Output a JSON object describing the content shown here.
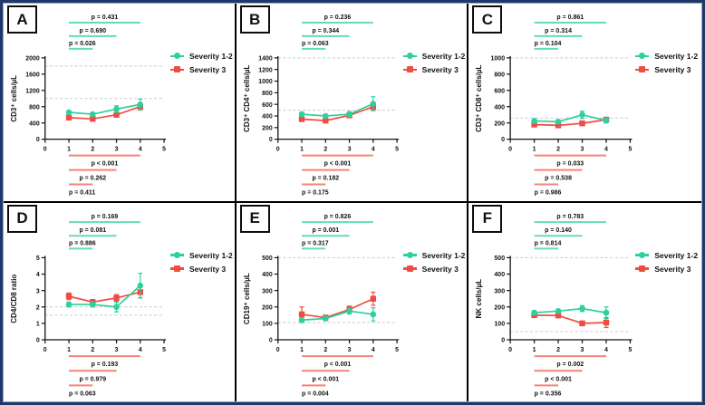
{
  "figure": {
    "outer_border_color": "#1f3864",
    "inner_border_color": "#8faadc",
    "divider_color": "#000000",
    "dashed_line_color": "#c9c9c9"
  },
  "legend": {
    "series1": "Severity 1-2",
    "series2": "Severity 3",
    "series1_color": "#2fcf9f",
    "series2_color": "#f04c41",
    "bracket_teal": "#63dcba",
    "bracket_red": "#f5837b"
  },
  "chart_data": [
    {
      "type": "line",
      "panel": "A",
      "ylabel": "CD3⁺ cells/µL",
      "xlabel": "",
      "ylim": [
        0,
        2000
      ],
      "yticks": [
        0,
        400,
        800,
        1200,
        1600,
        2000
      ],
      "xlim": [
        0,
        5
      ],
      "xticks": [
        0,
        1,
        2,
        3,
        4,
        5
      ],
      "dashed_lines": [
        1800,
        1000
      ],
      "x": [
        1,
        2,
        3,
        4
      ],
      "series": [
        {
          "name": "Severity 1-2",
          "marker": "circle",
          "values": [
            660,
            615,
            740,
            855
          ],
          "errors": [
            45,
            35,
            80,
            130
          ]
        },
        {
          "name": "Severity 3",
          "marker": "square",
          "values": [
            530,
            500,
            600,
            800
          ],
          "errors": [
            40,
            35,
            50,
            80
          ]
        }
      ],
      "top_brackets": [
        {
          "label": "p = 0.431",
          "x1": 1,
          "x2": 4
        },
        {
          "label": "p = 0.690",
          "x1": 1,
          "x2": 3
        },
        {
          "label": "p = 0.026",
          "x1": 1,
          "x2": 2
        }
      ],
      "bottom_brackets": [
        {
          "label": "p < 0.001",
          "x1": 1,
          "x2": 4
        },
        {
          "label": "p = 0.262",
          "x1": 1,
          "x2": 3
        },
        {
          "label": "p = 0.411",
          "x1": 1,
          "x2": 2
        }
      ]
    },
    {
      "type": "line",
      "panel": "B",
      "ylabel": "CD3⁺ CD4⁺ cells/µL",
      "xlabel": "",
      "ylim": [
        0,
        1400
      ],
      "yticks": [
        0,
        200,
        400,
        600,
        800,
        1000,
        1200,
        1400
      ],
      "xlim": [
        0,
        5
      ],
      "xticks": [
        0,
        1,
        2,
        3,
        4,
        5
      ],
      "dashed_lines": [
        1400,
        500
      ],
      "x": [
        1,
        2,
        3,
        4
      ],
      "series": [
        {
          "name": "Severity 1-2",
          "marker": "circle",
          "values": [
            430,
            400,
            430,
            610
          ],
          "errors": [
            35,
            30,
            45,
            120
          ]
        },
        {
          "name": "Severity 3",
          "marker": "square",
          "values": [
            345,
            320,
            410,
            560
          ],
          "errors": [
            30,
            30,
            30,
            60
          ]
        }
      ],
      "top_brackets": [
        {
          "label": "p = 0.236",
          "x1": 1,
          "x2": 4
        },
        {
          "label": "p = 0.344",
          "x1": 1,
          "x2": 3
        },
        {
          "label": "p = 0.063",
          "x1": 1,
          "x2": 2
        }
      ],
      "bottom_brackets": [
        {
          "label": "p < 0.001",
          "x1": 1,
          "x2": 4
        },
        {
          "label": "p = 0.182",
          "x1": 1,
          "x2": 3
        },
        {
          "label": "p = 0.175",
          "x1": 1,
          "x2": 2
        }
      ]
    },
    {
      "type": "line",
      "panel": "C",
      "ylabel": "CD3⁺ CD8⁺ cells/µL",
      "xlabel": "",
      "ylim": [
        0,
        1000
      ],
      "yticks": [
        0,
        200,
        400,
        600,
        800,
        1000
      ],
      "xlim": [
        0,
        5
      ],
      "xticks": [
        0,
        1,
        2,
        3,
        4,
        5
      ],
      "dashed_lines": [
        1000,
        260
      ],
      "x": [
        1,
        2,
        3,
        4
      ],
      "series": [
        {
          "name": "Severity 1-2",
          "marker": "circle",
          "values": [
            225,
            215,
            300,
            230
          ],
          "errors": [
            25,
            20,
            45,
            30
          ]
        },
        {
          "name": "Severity 3",
          "marker": "square",
          "values": [
            180,
            170,
            195,
            240
          ],
          "errors": [
            20,
            18,
            20,
            30
          ]
        }
      ],
      "top_brackets": [
        {
          "label": "p = 0.861",
          "x1": 1,
          "x2": 4
        },
        {
          "label": "p = 0.314",
          "x1": 1,
          "x2": 3
        },
        {
          "label": "p = 0.104",
          "x1": 1,
          "x2": 2
        }
      ],
      "bottom_brackets": [
        {
          "label": "p = 0.033",
          "x1": 1,
          "x2": 4
        },
        {
          "label": "p = 0.538",
          "x1": 1,
          "x2": 3
        },
        {
          "label": "p = 0.986",
          "x1": 1,
          "x2": 2
        }
      ]
    },
    {
      "type": "line",
      "panel": "D",
      "ylabel": "CD4/CD8 ratio",
      "xlabel": "",
      "ylim": [
        0,
        5
      ],
      "yticks": [
        0,
        1,
        2,
        3,
        4,
        5
      ],
      "xlim": [
        0,
        5
      ],
      "xticks": [
        0,
        1,
        2,
        3,
        4,
        5
      ],
      "dashed_lines": [
        2.0,
        1.5
      ],
      "x": [
        1,
        2,
        3,
        4
      ],
      "series": [
        {
          "name": "Severity 1-2",
          "marker": "circle",
          "values": [
            2.15,
            2.15,
            2.0,
            3.3
          ],
          "errors": [
            0.15,
            0.15,
            0.3,
            0.75
          ]
        },
        {
          "name": "Severity 3",
          "marker": "square",
          "values": [
            2.65,
            2.3,
            2.55,
            2.9
          ],
          "errors": [
            0.2,
            0.15,
            0.2,
            0.35
          ]
        }
      ],
      "top_brackets": [
        {
          "label": "p = 0.169",
          "x1": 1,
          "x2": 4
        },
        {
          "label": "p = 0.081",
          "x1": 1,
          "x2": 3
        },
        {
          "label": "p = 0.886",
          "x1": 1,
          "x2": 2
        }
      ],
      "bottom_brackets": [
        {
          "label": "p = 0.193",
          "x1": 1,
          "x2": 4
        },
        {
          "label": "p = 0.979",
          "x1": 1,
          "x2": 3
        },
        {
          "label": "p = 0.063",
          "x1": 1,
          "x2": 2
        }
      ]
    },
    {
      "type": "line",
      "panel": "E",
      "ylabel": "CD19⁺ cells/µL",
      "xlabel": "",
      "ylim": [
        0,
        500
      ],
      "yticks": [
        0,
        100,
        200,
        300,
        400,
        500
      ],
      "xlim": [
        0,
        5
      ],
      "xticks": [
        0,
        1,
        2,
        3,
        4,
        5
      ],
      "dashed_lines": [
        500,
        105
      ],
      "x": [
        1,
        2,
        3,
        4
      ],
      "series": [
        {
          "name": "Severity 1-2",
          "marker": "circle",
          "values": [
            120,
            130,
            175,
            155
          ],
          "errors": [
            15,
            12,
            18,
            40
          ]
        },
        {
          "name": "Severity 3",
          "marker": "square",
          "values": [
            155,
            135,
            185,
            250
          ],
          "errors": [
            45,
            15,
            20,
            40
          ]
        }
      ],
      "top_brackets": [
        {
          "label": "p = 0.826",
          "x1": 1,
          "x2": 4
        },
        {
          "label": "p = 0.001",
          "x1": 1,
          "x2": 3
        },
        {
          "label": "p = 0.317",
          "x1": 1,
          "x2": 2
        }
      ],
      "bottom_brackets": [
        {
          "label": "p < 0.001",
          "x1": 1,
          "x2": 4
        },
        {
          "label": "p < 0.001",
          "x1": 1,
          "x2": 3
        },
        {
          "label": "p = 0.004",
          "x1": 1,
          "x2": 2
        }
      ]
    },
    {
      "type": "line",
      "panel": "F",
      "ylabel": "NK cells/µL",
      "xlabel": "",
      "ylim": [
        0,
        500
      ],
      "yticks": [
        0,
        100,
        200,
        300,
        400,
        500
      ],
      "xlim": [
        0,
        5
      ],
      "xticks": [
        0,
        1,
        2,
        3,
        4,
        5
      ],
      "dashed_lines": [
        500,
        50
      ],
      "x": [
        1,
        2,
        3,
        4
      ],
      "series": [
        {
          "name": "Severity 1-2",
          "marker": "circle",
          "values": [
            165,
            175,
            190,
            165
          ],
          "errors": [
            12,
            12,
            18,
            35
          ]
        },
        {
          "name": "Severity 3",
          "marker": "square",
          "values": [
            150,
            148,
            100,
            105
          ],
          "errors": [
            12,
            12,
            10,
            30
          ]
        }
      ],
      "top_brackets": [
        {
          "label": "p = 0.783",
          "x1": 1,
          "x2": 4
        },
        {
          "label": "p = 0.140",
          "x1": 1,
          "x2": 3
        },
        {
          "label": "p = 0.814",
          "x1": 1,
          "x2": 2
        }
      ],
      "bottom_brackets": [
        {
          "label": "p = 0.002",
          "x1": 1,
          "x2": 4
        },
        {
          "label": "p < 0.001",
          "x1": 1,
          "x2": 3
        },
        {
          "label": "p = 0.356",
          "x1": 1,
          "x2": 2
        }
      ]
    }
  ]
}
